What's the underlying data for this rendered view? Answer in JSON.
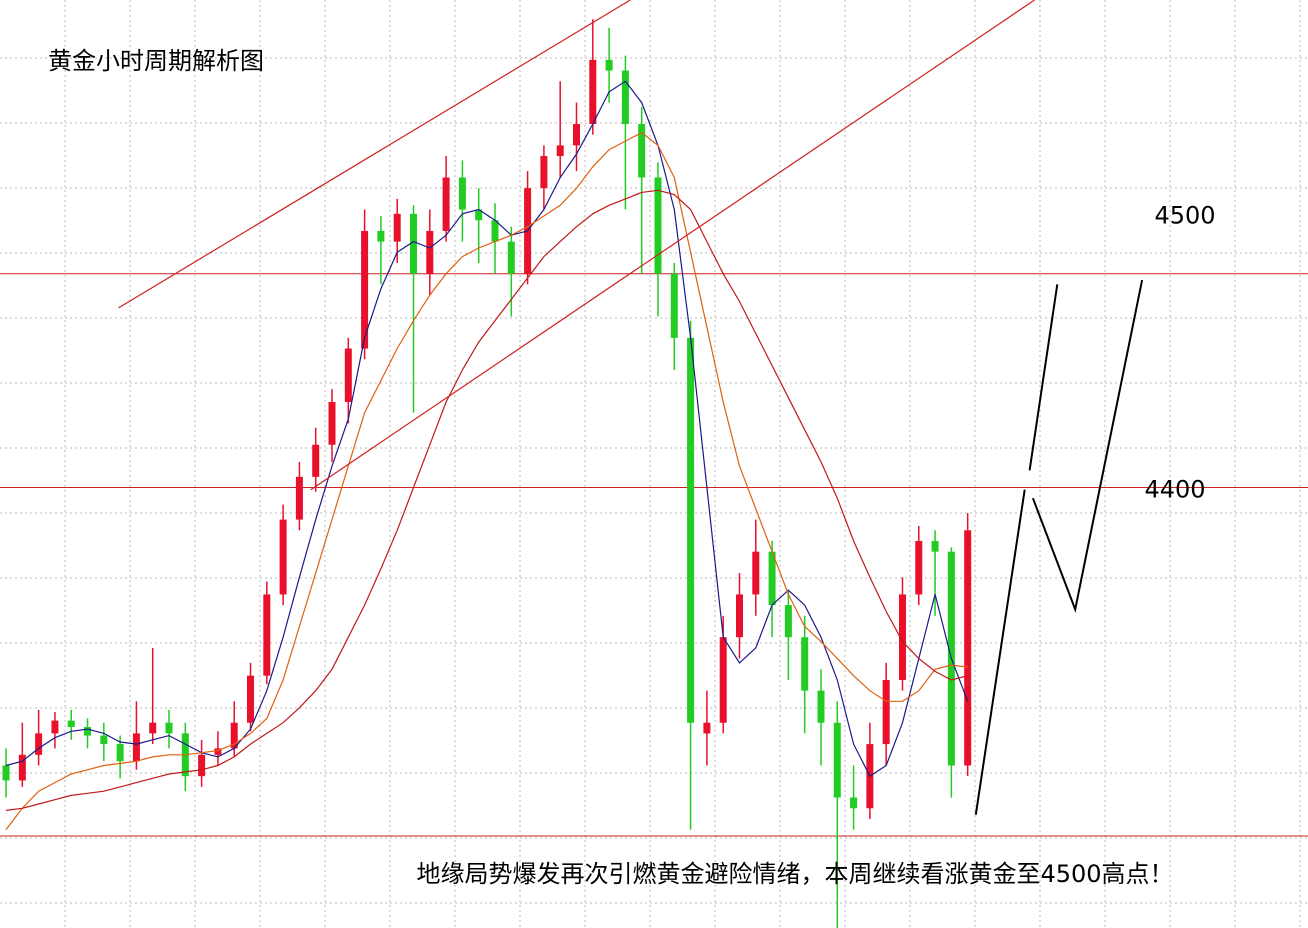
{
  "chart_data": {
    "type": "candlestick",
    "title": "黄金小时周期解析图",
    "annotation": "地缘局势爆发再次引燃黄金避险情绪，本周继续看涨黄金至4500高点！",
    "xlim": [
      -0.37,
      79.88
    ],
    "ylim": [
      4194,
      4628
    ],
    "grid": true,
    "up_color": "#e8102a",
    "down_color": "#22cc22",
    "candles": [
      [
        4270,
        4278,
        4255,
        4263
      ],
      [
        4263,
        4290,
        4260,
        4275
      ],
      [
        4275,
        4296,
        4270,
        4285
      ],
      [
        4285,
        4295,
        4278,
        4291
      ],
      [
        4291,
        4296,
        4282,
        4288
      ],
      [
        4288,
        4292,
        4278,
        4284
      ],
      [
        4284,
        4290,
        4272,
        4280
      ],
      [
        4280,
        4284,
        4264,
        4272
      ],
      [
        4272,
        4300,
        4268,
        4285
      ],
      [
        4285,
        4325,
        4280,
        4290
      ],
      [
        4290,
        4296,
        4278,
        4285
      ],
      [
        4285,
        4290,
        4258,
        4265
      ],
      [
        4265,
        4282,
        4260,
        4275
      ],
      [
        4275,
        4286,
        4270,
        4278
      ],
      [
        4278,
        4300,
        4274,
        4290
      ],
      [
        4290,
        4318,
        4286,
        4312
      ],
      [
        4312,
        4356,
        4308,
        4350
      ],
      [
        4350,
        4392,
        4345,
        4385
      ],
      [
        4385,
        4412,
        4380,
        4405
      ],
      [
        4405,
        4428,
        4398,
        4420
      ],
      [
        4420,
        4446,
        4412,
        4440
      ],
      [
        4440,
        4470,
        4430,
        4465
      ],
      [
        4465,
        4530,
        4460,
        4520
      ],
      [
        4520,
        4527,
        4495,
        4515
      ],
      [
        4515,
        4535,
        4505,
        4528
      ],
      [
        4528,
        4532,
        4435,
        4500
      ],
      [
        4500,
        4530,
        4490,
        4520
      ],
      [
        4520,
        4555,
        4515,
        4545
      ],
      [
        4545,
        4553,
        4515,
        4530
      ],
      [
        4530,
        4540,
        4505,
        4525
      ],
      [
        4525,
        4533,
        4500,
        4515
      ],
      [
        4515,
        4522,
        4480,
        4500
      ],
      [
        4500,
        4548,
        4495,
        4540
      ],
      [
        4540,
        4560,
        4530,
        4555
      ],
      [
        4555,
        4590,
        4545,
        4560
      ],
      [
        4560,
        4580,
        4548,
        4570
      ],
      [
        4570,
        4619,
        4565,
        4600
      ],
      [
        4600,
        4615,
        4580,
        4595
      ],
      [
        4595,
        4602,
        4530,
        4570
      ],
      [
        4570,
        4578,
        4500,
        4545
      ],
      [
        4545,
        4552,
        4480,
        4500
      ],
      [
        4500,
        4505,
        4455,
        4470
      ],
      [
        4470,
        4478,
        4240,
        4290
      ],
      [
        4285,
        4305,
        4270,
        4290
      ],
      [
        4290,
        4340,
        4285,
        4330
      ],
      [
        4330,
        4360,
        4320,
        4350
      ],
      [
        4350,
        4385,
        4340,
        4370
      ],
      [
        4370,
        4375,
        4330,
        4345
      ],
      [
        4345,
        4352,
        4310,
        4330
      ],
      [
        4330,
        4340,
        4285,
        4305
      ],
      [
        4305,
        4315,
        4270,
        4290
      ],
      [
        4290,
        4300,
        4194,
        4255
      ],
      [
        4255,
        4270,
        4240,
        4250
      ],
      [
        4250,
        4290,
        4245,
        4280
      ],
      [
        4280,
        4318,
        4270,
        4310
      ],
      [
        4310,
        4358,
        4305,
        4350
      ],
      [
        4350,
        4382,
        4345,
        4375
      ],
      [
        4375,
        4380,
        4340,
        4370
      ],
      [
        4370,
        4372,
        4255,
        4270
      ],
      [
        4270,
        4388,
        4265,
        4380
      ]
    ],
    "series": [
      {
        "color": "#1a1a8c",
        "values": [
          4270,
          4272,
          4278,
          4283,
          4286,
          4287,
          4285,
          4281,
          4280,
          4282,
          4284,
          4280,
          4276,
          4274,
          4278,
          4287,
          4305,
          4330,
          4358,
          4385,
          4410,
          4432,
          4470,
          4493,
          4510,
          4515,
          4512,
          4518,
          4528,
          4530,
          4525,
          4518,
          4520,
          4530,
          4545,
          4556,
          4570,
          4585,
          4590,
          4580,
          4560,
          4530,
          4470,
          4400,
          4330,
          4318,
          4325,
          4345,
          4352,
          4345,
          4330,
          4310,
          4280,
          4265,
          4270,
          4290,
          4320,
          4350,
          4320,
          4300
        ]
      },
      {
        "color": "#e06010",
        "values": [
          4240,
          4250,
          4258,
          4262,
          4266,
          4268,
          4270,
          4271,
          4272,
          4274,
          4275,
          4275,
          4276,
          4277,
          4280,
          4285,
          4292,
          4310,
          4335,
          4360,
          4385,
          4410,
          4435,
          4450,
          4465,
          4478,
          4490,
          4500,
          4508,
          4512,
          4515,
          4518,
          4522,
          4527,
          4532,
          4540,
          4550,
          4558,
          4562,
          4566,
          4560,
          4545,
          4510,
          4475,
          4440,
          4410,
          4390,
          4370,
          4350,
          4335,
          4328,
          4320,
          4312,
          4305,
          4300,
          4300,
          4305,
          4315,
          4317,
          4316
        ]
      },
      {
        "color": "#c01818",
        "values": [
          4249,
          4250,
          4252,
          4254,
          4256,
          4257,
          4258,
          4260,
          4262,
          4264,
          4266,
          4267,
          4268,
          4270,
          4274,
          4280,
          4285,
          4290,
          4297,
          4305,
          4315,
          4330,
          4345,
          4362,
          4380,
          4400,
          4420,
          4440,
          4455,
          4468,
          4478,
          4488,
          4498,
          4508,
          4515,
          4522,
          4528,
          4532,
          4535,
          4538,
          4539,
          4537,
          4530,
          4515,
          4500,
          4487,
          4472,
          4457,
          4442,
          4427,
          4412,
          4395,
          4375,
          4358,
          4342,
          4328,
          4320,
          4314,
          4310,
          4312
        ]
      }
    ],
    "hlines": [
      {
        "value": 4500,
        "color": "#d02020"
      },
      {
        "value": 4400,
        "color": "#d02020"
      },
      {
        "value": 4237,
        "color": "#d02020"
      }
    ],
    "trendlines": [
      {
        "color": "#d02020",
        "points": [
          [
            6.9,
            4484
          ],
          [
            38.3,
            4628
          ]
        ]
      },
      {
        "color": "#d02020",
        "points": [
          [
            18.7,
            4399
          ],
          [
            63.1,
            4628
          ]
        ]
      },
      {
        "color": "#000000",
        "points": [
          [
            59.5,
            4247
          ],
          [
            62.5,
            4399
          ]
        ]
      },
      {
        "color": "#000000",
        "points": [
          [
            62.8,
            4408
          ],
          [
            64.5,
            4495
          ]
        ]
      },
      {
        "color": "#000000",
        "points": [
          [
            63,
            4395
          ],
          [
            65.6,
            4343
          ],
          [
            69.7,
            4497
          ]
        ]
      }
    ]
  }
}
